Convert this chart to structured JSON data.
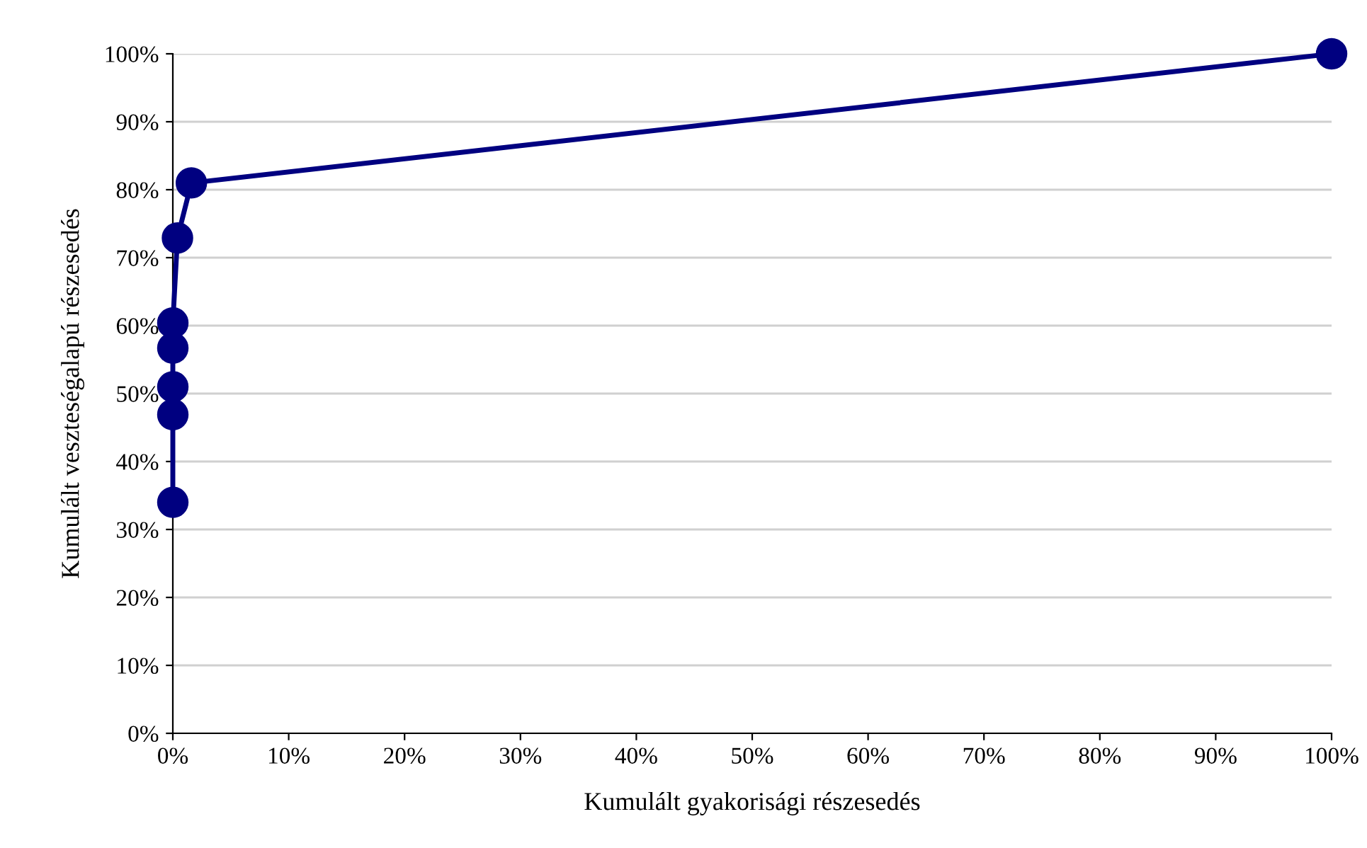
{
  "chart_data": {
    "type": "line",
    "xlabel": "Kumulált gyakorisági részesedés",
    "ylabel": "Kumulált veszteségalapú részesedés",
    "x": [
      0,
      0,
      0,
      0,
      0,
      0.4,
      1.6,
      100
    ],
    "series": [
      {
        "color": "#000080",
        "values": [
          34,
          46.9,
          51,
          56.7,
          60.4,
          72.9,
          81,
          100
        ]
      }
    ],
    "xlim": [
      0,
      100
    ],
    "ylim": [
      0,
      100
    ],
    "xticks": [
      {
        "value": 0,
        "label": "0%"
      },
      {
        "value": 10,
        "label": "10%"
      },
      {
        "value": 20,
        "label": "20%"
      },
      {
        "value": 30,
        "label": "30%"
      },
      {
        "value": 40,
        "label": "40%"
      },
      {
        "value": 50,
        "label": "50%"
      },
      {
        "value": 60,
        "label": "60%"
      },
      {
        "value": 70,
        "label": "70%"
      },
      {
        "value": 80,
        "label": "80%"
      },
      {
        "value": 90,
        "label": "90%"
      },
      {
        "value": 100,
        "label": "100%"
      }
    ],
    "yticks": [
      {
        "value": 0,
        "label": "0%"
      },
      {
        "value": 10,
        "label": "10%"
      },
      {
        "value": 20,
        "label": "20%"
      },
      {
        "value": 30,
        "label": "30%"
      },
      {
        "value": 40,
        "label": "40%"
      },
      {
        "value": 50,
        "label": "50%"
      },
      {
        "value": 60,
        "label": "60%"
      },
      {
        "value": 70,
        "label": "70%"
      },
      {
        "value": 80,
        "label": "80%"
      },
      {
        "value": 90,
        "label": "90%"
      },
      {
        "value": 100,
        "label": "100%"
      }
    ],
    "grid": "y",
    "marker": "circle",
    "line_style": "solid",
    "legend": false
  }
}
